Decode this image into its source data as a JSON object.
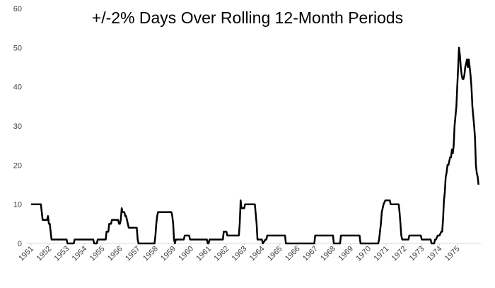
{
  "chart_data": {
    "type": "line",
    "title": "+/-2% Days Over Rolling 12-Month Periods",
    "xlabel": "",
    "ylabel": "",
    "ylim": [
      0,
      60
    ],
    "yticks": [
      "0",
      "10",
      "20",
      "30",
      "40",
      "50",
      "60"
    ],
    "xlim": [
      1951,
      1976.25
    ],
    "xticks": [
      "1951",
      "1952",
      "1953",
      "1954",
      "1955",
      "1956",
      "1957",
      "1958",
      "1959",
      "1960",
      "1961",
      "1962",
      "1963",
      "1964",
      "1965",
      "1966",
      "1967",
      "1968",
      "1969",
      "1970",
      "1971",
      "1972",
      "1973",
      "1974",
      "1975"
    ],
    "grid": false,
    "legend": "none",
    "line_color": "#000000",
    "series": [
      {
        "x": [
          1951.0,
          1951.55,
          1951.65,
          1951.9,
          1951.95,
          1952.0,
          1952.05,
          1952.1,
          1952.15,
          1952.2,
          1953.0,
          1953.05,
          1953.4,
          1953.45,
          1954.5,
          1954.55,
          1954.7,
          1954.75,
          1955.2,
          1955.25,
          1955.35,
          1955.4,
          1955.5,
          1955.55,
          1955.9,
          1955.95,
          1956.0,
          1956.05,
          1956.1,
          1956.15,
          1956.25,
          1956.3,
          1956.35,
          1956.45,
          1956.5,
          1956.95,
          1957.0,
          1957.05,
          1957.95,
          1958.0,
          1958.05,
          1958.1,
          1958.15,
          1958.2,
          1958.9,
          1958.95,
          1959.0,
          1959.05,
          1959.1,
          1959.15,
          1959.6,
          1959.65,
          1959.9,
          1959.95,
          1960.3,
          1960.35,
          1960.9,
          1960.95,
          1961.0,
          1961.05,
          1961.8,
          1961.85,
          1962.0,
          1962.05,
          1962.7,
          1962.75,
          1962.8,
          1962.85,
          1963.0,
          1963.05,
          1963.6,
          1963.7,
          1963.75,
          1963.8,
          1964.0,
          1964.05,
          1964.2,
          1964.25,
          1964.3,
          1964.35,
          1965.3,
          1965.35,
          1966.95,
          1967.0,
          1968.0,
          1968.05,
          1968.4,
          1968.45,
          1969.5,
          1969.55,
          1970.55,
          1970.6,
          1970.7,
          1970.75,
          1970.8,
          1970.85,
          1970.95,
          1971.0,
          1971.2,
          1971.25,
          1971.7,
          1971.75,
          1971.8,
          1971.85,
          1971.9,
          1971.95,
          1972.25,
          1972.3,
          1972.35,
          1972.4,
          1972.95,
          1973.0,
          1973.5,
          1973.55,
          1973.7,
          1973.75,
          1973.8,
          1973.9,
          1974.0,
          1974.1,
          1974.15,
          1974.2,
          1974.25,
          1974.3,
          1974.35,
          1974.4,
          1974.45,
          1974.5,
          1974.55,
          1974.6,
          1974.65,
          1974.7,
          1974.75,
          1974.8,
          1974.85,
          1974.95,
          1975.0,
          1975.05,
          1975.1,
          1975.15,
          1975.2,
          1975.25,
          1975.3,
          1975.35,
          1975.4,
          1975.45,
          1975.5,
          1975.55,
          1975.6,
          1975.65,
          1975.7,
          1975.75,
          1975.8,
          1975.85,
          1975.95,
          1976.0,
          1976.05,
          1976.1,
          1976.15,
          1976.2
        ],
        "values": [
          10,
          10,
          6,
          6,
          7,
          5,
          5,
          3,
          1,
          1,
          1,
          0,
          0,
          1,
          1,
          0,
          0,
          1,
          1,
          3,
          3,
          5,
          5,
          6,
          6,
          5,
          5,
          6,
          9,
          8,
          8,
          7,
          7,
          5,
          4,
          4,
          1,
          0,
          0,
          2,
          5,
          7,
          8,
          8,
          8,
          7,
          5,
          1,
          0,
          1,
          1,
          2,
          2,
          1,
          1,
          1,
          1,
          0,
          0,
          1,
          1,
          3,
          3,
          2,
          2,
          5,
          11,
          9,
          9,
          10,
          10,
          5,
          1,
          1,
          1,
          0,
          1,
          1,
          2,
          2,
          2,
          0,
          0,
          2,
          2,
          0,
          0,
          2,
          2,
          0,
          0,
          1,
          5,
          8,
          9,
          10,
          11,
          11,
          11,
          10,
          10,
          8,
          5,
          2,
          1,
          1,
          1,
          2,
          2,
          2,
          2,
          1,
          1,
          0,
          0,
          1,
          1,
          2,
          2,
          3,
          3,
          6,
          11,
          13,
          17,
          18,
          20,
          20,
          21,
          22,
          22,
          24,
          23,
          25,
          30,
          35,
          40,
          45,
          50,
          48,
          45,
          43,
          42,
          42,
          43,
          45,
          46,
          47,
          45,
          47,
          45,
          43,
          40,
          35,
          30,
          27,
          20,
          18,
          17,
          15
        ]
      }
    ]
  }
}
